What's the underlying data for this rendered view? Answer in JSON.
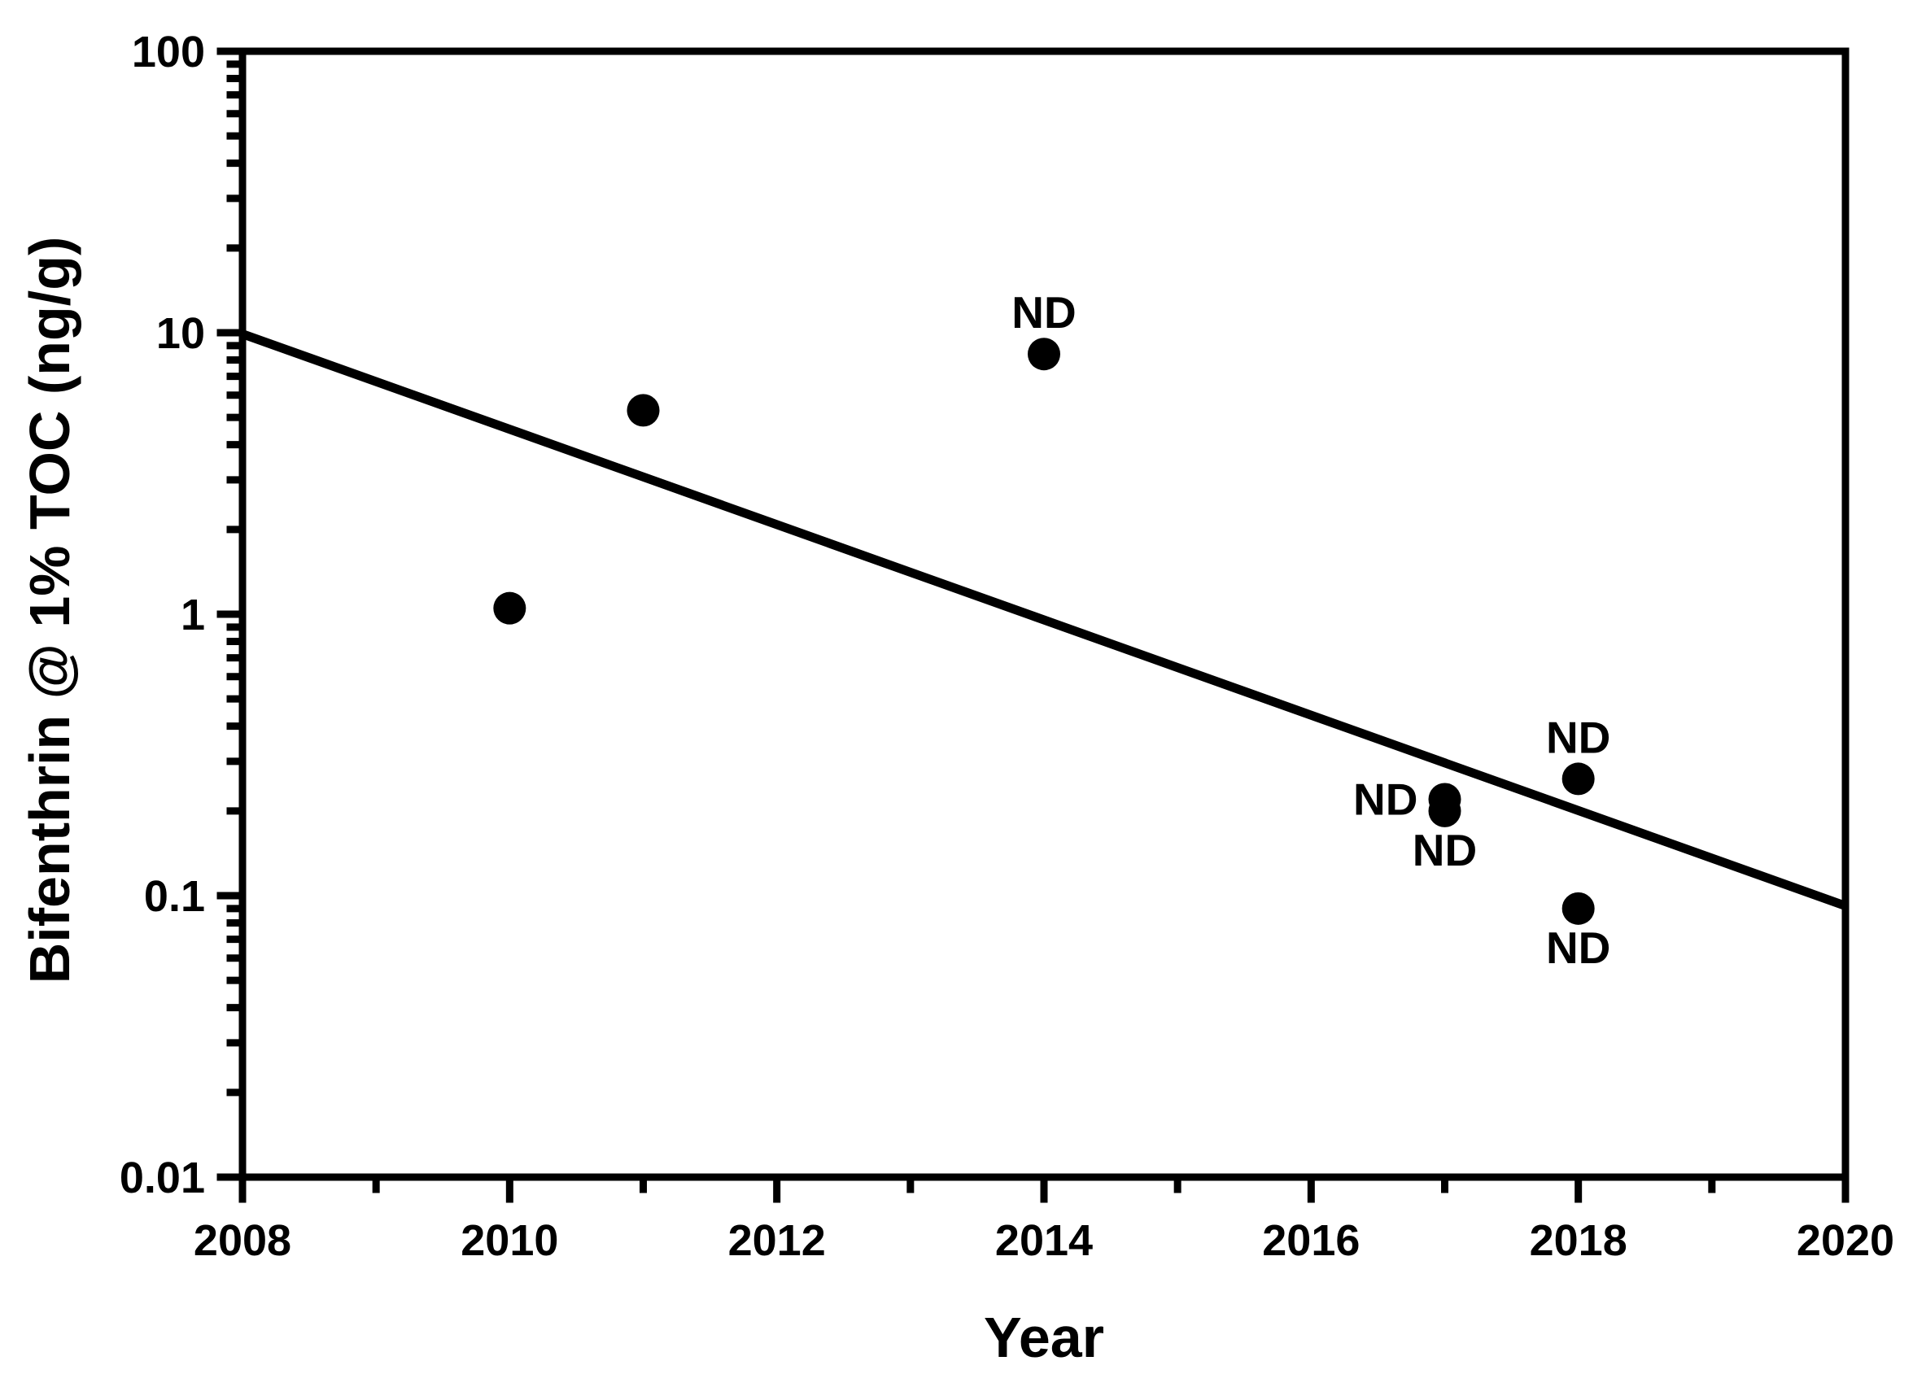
{
  "figure": {
    "background_color": "#ffffff",
    "foreground_color": "#000000"
  },
  "chart_data": {
    "type": "scatter",
    "title": "",
    "xlabel": "Year",
    "ylabel": "Bifenthrin @ 1% TOC (ng/g)",
    "x_scale": "linear",
    "y_scale": "log",
    "xlim": [
      2008,
      2020
    ],
    "ylim": [
      0.01,
      100
    ],
    "grid": false,
    "legend": null,
    "x_major_ticks": [
      {
        "value": 2008,
        "label": "2008"
      },
      {
        "value": 2010,
        "label": "2010"
      },
      {
        "value": 2012,
        "label": "2012"
      },
      {
        "value": 2014,
        "label": "2014"
      },
      {
        "value": 2016,
        "label": "2016"
      },
      {
        "value": 2018,
        "label": "2018"
      },
      {
        "value": 2020,
        "label": "2020"
      }
    ],
    "x_minor_ticks": [
      2009,
      2011,
      2013,
      2015,
      2017,
      2019
    ],
    "y_major_ticks": [
      {
        "value": 100,
        "label": "100"
      },
      {
        "value": 10,
        "label": "10"
      },
      {
        "value": 1,
        "label": "1"
      },
      {
        "value": 0.1,
        "label": "0.1"
      },
      {
        "value": 0.01,
        "label": "0.01"
      }
    ],
    "y_minor_ticks": [
      0.02,
      0.03,
      0.04,
      0.05,
      0.06,
      0.07,
      0.08,
      0.09,
      0.2,
      0.3,
      0.4,
      0.5,
      0.6,
      0.7,
      0.8,
      0.9,
      2,
      3,
      4,
      5,
      6,
      7,
      8,
      9,
      20,
      30,
      40,
      50,
      60,
      70,
      80,
      90
    ],
    "points": [
      {
        "x": 2010,
        "y": 1.05,
        "label": "",
        "label_pos": null
      },
      {
        "x": 2011,
        "y": 5.3,
        "label": "",
        "label_pos": null
      },
      {
        "x": 2014,
        "y": 8.4,
        "label": "ND",
        "label_pos": "above"
      },
      {
        "x": 2017,
        "y": 0.22,
        "label": "ND",
        "label_pos": "left"
      },
      {
        "x": 2017,
        "y": 0.2,
        "label": "ND",
        "label_pos": "below"
      },
      {
        "x": 2018,
        "y": 0.26,
        "label": "ND",
        "label_pos": "above"
      },
      {
        "x": 2018,
        "y": 0.09,
        "label": "ND",
        "label_pos": "below"
      }
    ],
    "trend_line": {
      "x1": 2008,
      "y1": 9.9,
      "x2": 2020,
      "y2": 0.092
    }
  }
}
